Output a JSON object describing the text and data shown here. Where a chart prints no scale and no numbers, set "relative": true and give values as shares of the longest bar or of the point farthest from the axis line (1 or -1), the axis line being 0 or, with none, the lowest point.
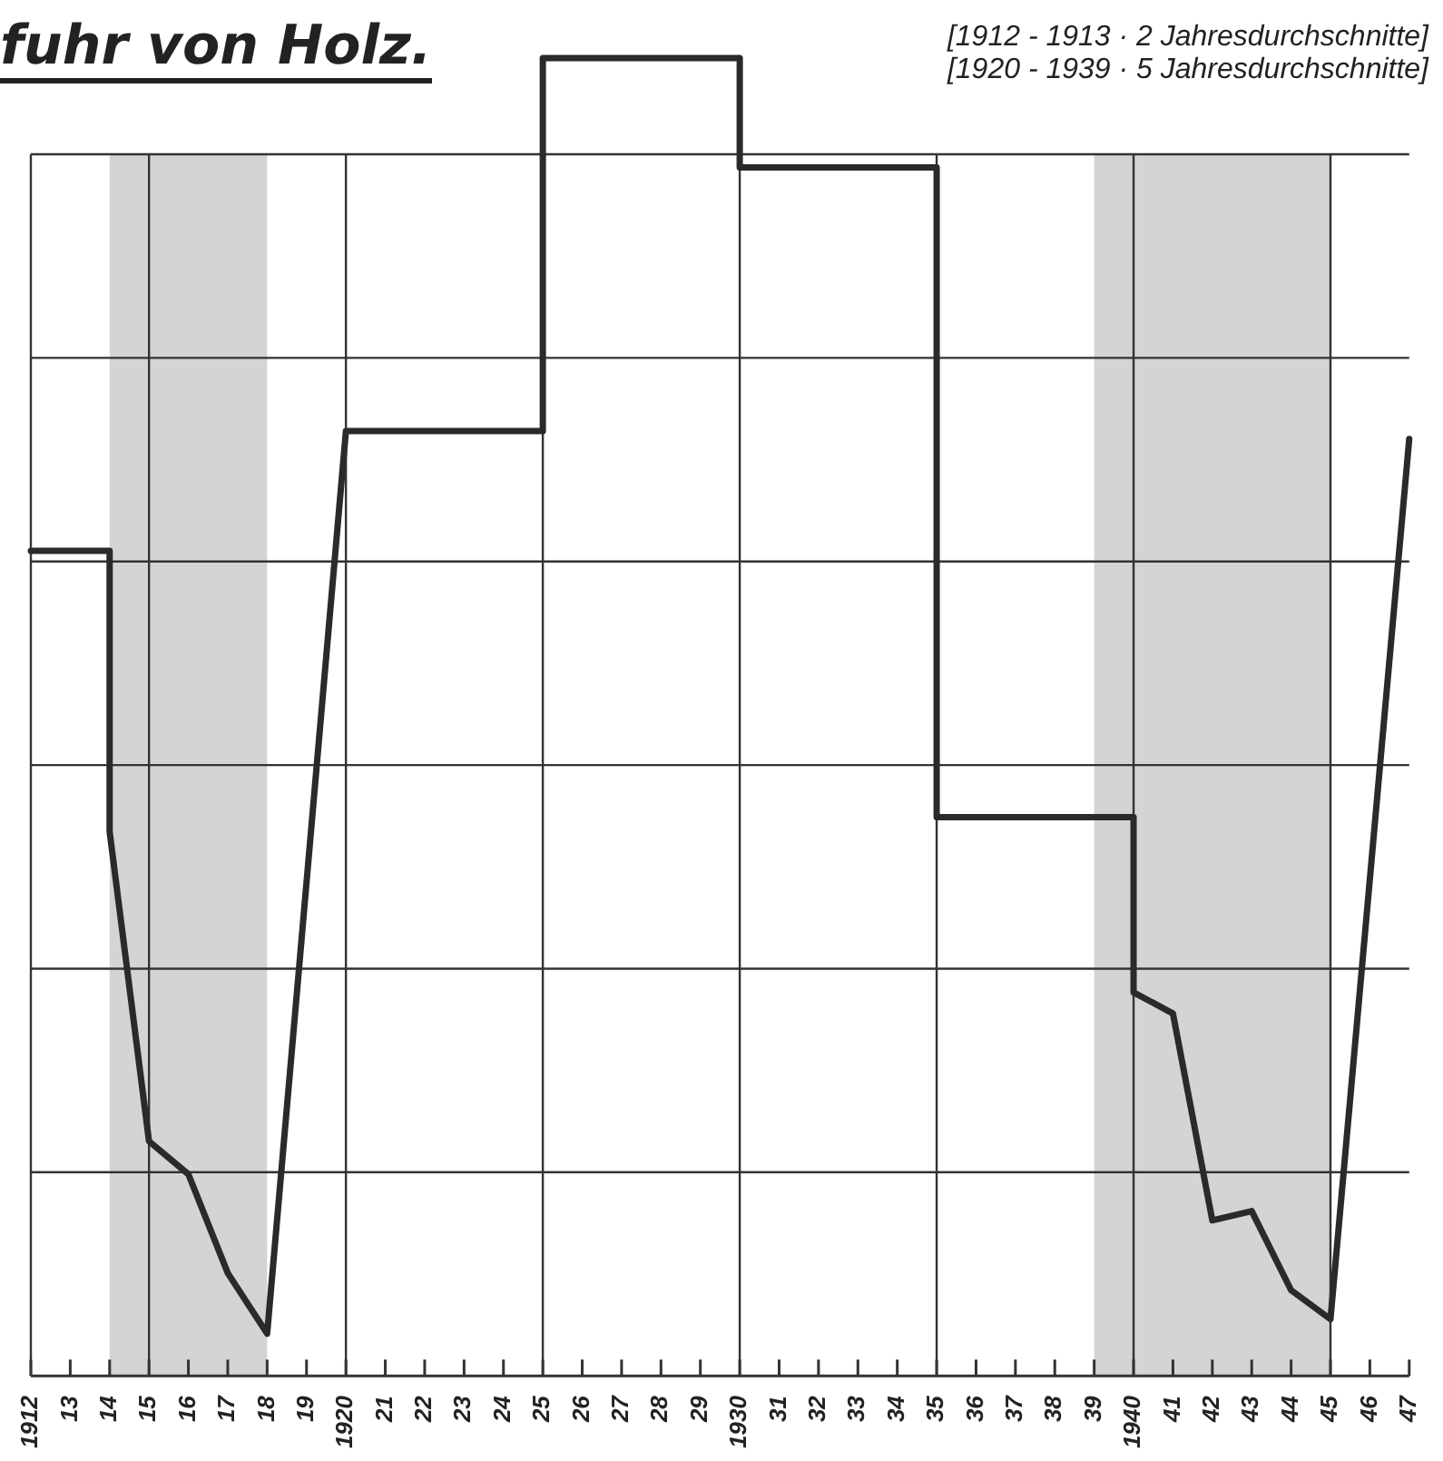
{
  "chart_data": {
    "type": "line",
    "title": "fuhr von Holz.",
    "annotations": [
      "[1912 - 1913 · 2 Jahresdurchschnitte]",
      "[1920 - 1939 · 5 Jahresdurchschnitte]"
    ],
    "relative": true,
    "grid": true,
    "line_style": "solid",
    "marker": "none",
    "xlim": [
      1912,
      1947
    ],
    "xticks": [
      {
        "value": 1912,
        "label": "1912"
      },
      {
        "value": 1913,
        "label": "13"
      },
      {
        "value": 1914,
        "label": "14"
      },
      {
        "value": 1915,
        "label": "15"
      },
      {
        "value": 1916,
        "label": "16"
      },
      {
        "value": 1917,
        "label": "17"
      },
      {
        "value": 1918,
        "label": "18"
      },
      {
        "value": 1919,
        "label": "19"
      },
      {
        "value": 1920,
        "label": "1920"
      },
      {
        "value": 1921,
        "label": "21"
      },
      {
        "value": 1922,
        "label": "22"
      },
      {
        "value": 1923,
        "label": "23"
      },
      {
        "value": 1924,
        "label": "24"
      },
      {
        "value": 1925,
        "label": "25"
      },
      {
        "value": 1926,
        "label": "26"
      },
      {
        "value": 1927,
        "label": "27"
      },
      {
        "value": 1928,
        "label": "28"
      },
      {
        "value": 1929,
        "label": "29"
      },
      {
        "value": 1930,
        "label": "1930"
      },
      {
        "value": 1931,
        "label": "31"
      },
      {
        "value": 1932,
        "label": "32"
      },
      {
        "value": 1933,
        "label": "33"
      },
      {
        "value": 1934,
        "label": "34"
      },
      {
        "value": 1935,
        "label": "35"
      },
      {
        "value": 1936,
        "label": "36"
      },
      {
        "value": 1937,
        "label": "37"
      },
      {
        "value": 1938,
        "label": "38"
      },
      {
        "value": 1939,
        "label": "39"
      },
      {
        "value": 1940,
        "label": "1940"
      },
      {
        "value": 1941,
        "label": "41"
      },
      {
        "value": 1942,
        "label": "42"
      },
      {
        "value": 1943,
        "label": "43"
      },
      {
        "value": 1944,
        "label": "44"
      },
      {
        "value": 1945,
        "label": "45"
      },
      {
        "value": 1946,
        "label": "46"
      },
      {
        "value": 1947,
        "label": "47"
      }
    ],
    "bands": [
      {
        "axis": "x",
        "from": 1914,
        "to": 1918,
        "color": "#d4d4d4"
      },
      {
        "axis": "x",
        "from": 1939,
        "to": 1945,
        "color": "#d4d4d4"
      }
    ],
    "series": [
      {
        "color": "#2a2a2a",
        "x": [
          1912,
          1914,
          1914,
          1915,
          1916,
          1917,
          1918,
          1920,
          1925,
          1925,
          1930,
          1930,
          1935,
          1935,
          1940,
          1940,
          1941,
          1942,
          1943,
          1944,
          1945,
          1947
        ],
        "values": [
          0.626,
          0.626,
          0.413,
          0.178,
          0.153,
          0.078,
          0.032,
          0.717,
          0.717,
          1,
          1,
          0.917,
          0.917,
          0.424,
          0.424,
          0.291,
          0.275,
          0.118,
          0.125,
          0.065,
          0.043,
          0.711
        ]
      }
    ]
  }
}
